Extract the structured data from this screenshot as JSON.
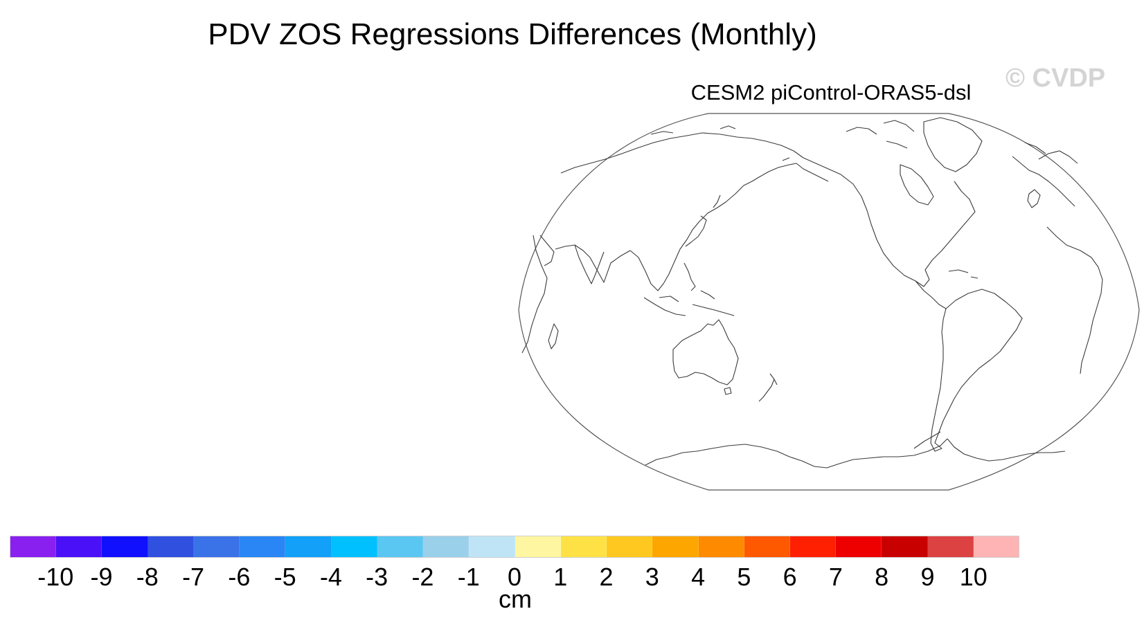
{
  "title": "PDV ZOS Regressions Differences (Monthly)",
  "watermark": "© CVDP",
  "panel": {
    "title": "CESM2 piControl-ORAS5-dsl"
  },
  "colorbar": {
    "units": "cm",
    "tick_labels": [
      "-10",
      "-9",
      "-8",
      "-7",
      "-6",
      "-5",
      "-4",
      "-3",
      "-2",
      "-1",
      "0",
      "1",
      "2",
      "3",
      "4",
      "5",
      "6",
      "7",
      "8",
      "9",
      "10"
    ],
    "colors": [
      "#8a20f0",
      "#4a10f8",
      "#1010ff",
      "#3050e0",
      "#3a72e8",
      "#2a86f5",
      "#12a0f8",
      "#00c0ff",
      "#5ac6f2",
      "#9ad0ea",
      "#bee4f6",
      "#fef6a0",
      "#fee245",
      "#fec820",
      "#fea600",
      "#fe8a00",
      "#fe5800",
      "#fe2000",
      "#ee0000",
      "#c80000",
      "#dc4242",
      "#feb4b4"
    ]
  },
  "map": {
    "projection": "robinson",
    "central_longitude": 180,
    "coastline_color": "#333333",
    "fill": "none"
  }
}
